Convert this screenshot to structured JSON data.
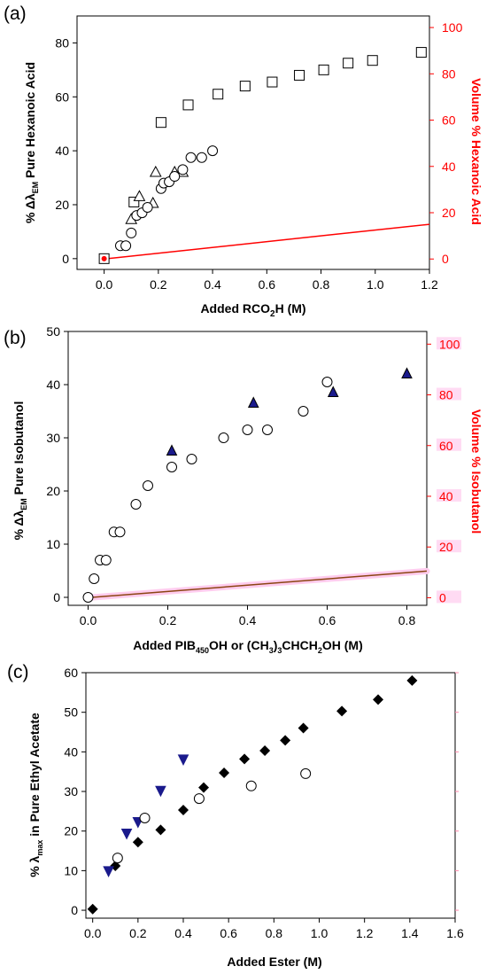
{
  "colors": {
    "axis": "#000000",
    "right_axis_red": "#ff0000",
    "marker_blue": "#1a1a8c",
    "line_red": "#ff0000",
    "line_brown": "#8b4513",
    "line_magenta_glow": "#ffccee"
  },
  "chart_data": [
    {
      "panel_label": "(a)",
      "type": "scatter",
      "xlabel_main": "Added RCO",
      "xlabel_sub": "2",
      "xlabel_tail": "H (M)",
      "ylabel_left": "% Δλ",
      "ylabel_left_sub": "EM",
      "ylabel_left_tail": " Pure Hexanoic Acid",
      "ylabel_right": "Volume % Hexanoic Acid",
      "xlim": [
        -0.1,
        1.2
      ],
      "ylim_left": [
        -4,
        90
      ],
      "ylim_right": [
        -4.5,
        105
      ],
      "x_ticks": [
        "0.0",
        "0.2",
        "0.4",
        "0.6",
        "0.8",
        "1.0",
        "1.2"
      ],
      "y_left_ticks": [
        "0",
        "20",
        "40",
        "60",
        "80"
      ],
      "y_right_ticks": [
        "0",
        "20",
        "40",
        "60",
        "80",
        "100"
      ],
      "series": [
        {
          "marker": "square",
          "points": [
            [
              0.0,
              0
            ],
            [
              0.11,
              21
            ],
            [
              0.21,
              50.5
            ],
            [
              0.31,
              57
            ],
            [
              0.42,
              61
            ],
            [
              0.52,
              64
            ],
            [
              0.62,
              65.5
            ],
            [
              0.72,
              68
            ],
            [
              0.81,
              70
            ],
            [
              0.9,
              72.5
            ],
            [
              0.99,
              73.5
            ],
            [
              1.17,
              76.5
            ]
          ]
        },
        {
          "marker": "triangle",
          "points": [
            [
              0.1,
              14.5
            ],
            [
              0.13,
              23
            ],
            [
              0.18,
              20.5
            ],
            [
              0.19,
              32
            ],
            [
              0.26,
              32
            ],
            [
              0.29,
              32
            ]
          ]
        },
        {
          "marker": "circle",
          "points": [
            [
              0.06,
              4.8
            ],
            [
              0.08,
              4.8
            ],
            [
              0.1,
              9.5
            ],
            [
              0.12,
              16
            ],
            [
              0.14,
              17
            ],
            [
              0.16,
              19
            ],
            [
              0.21,
              26
            ],
            [
              0.22,
              28
            ],
            [
              0.24,
              28.5
            ],
            [
              0.26,
              30.5
            ],
            [
              0.29,
              33
            ],
            [
              0.32,
              37.5
            ],
            [
              0.36,
              37.5
            ],
            [
              0.4,
              40
            ]
          ]
        },
        {
          "marker": "red-dot",
          "points": [
            [
              0.0,
              0
            ]
          ]
        }
      ],
      "line_right_axis": {
        "points": [
          [
            0.0,
            0
          ],
          [
            1.2,
            15
          ]
        ]
      }
    },
    {
      "panel_label": "(b)",
      "type": "scatter",
      "xlabel_a": "Added PIB",
      "xlabel_a_sub": "450",
      "xlabel_b": "OH or (CH",
      "xlabel_b_sub": "3",
      "xlabel_c": ")",
      "xlabel_c_sub": "3",
      "xlabel_d": "CHCH",
      "xlabel_d_sub": "2",
      "xlabel_e": "OH (M)",
      "ylabel_left": "% Δλ",
      "ylabel_left_sub": "EM",
      "ylabel_left_tail": " Pure Isobutanol",
      "ylabel_right": "Volume % Isobutanol",
      "xlim": [
        -0.05,
        0.85
      ],
      "ylim_left": [
        -1.5,
        50
      ],
      "ylim_right": [
        -3,
        105
      ],
      "x_ticks": [
        "0.0",
        "0.2",
        "0.4",
        "0.6",
        "0.8"
      ],
      "y_left_ticks": [
        "0",
        "10",
        "20",
        "30",
        "40",
        "50"
      ],
      "y_right_ticks": [
        "0",
        "20",
        "40",
        "60",
        "80",
        "100"
      ],
      "series": [
        {
          "marker": "circle",
          "points": [
            [
              0.0,
              0
            ],
            [
              0.015,
              3.5
            ],
            [
              0.03,
              7
            ],
            [
              0.045,
              7
            ],
            [
              0.065,
              12.3
            ],
            [
              0.08,
              12.3
            ],
            [
              0.12,
              17.5
            ],
            [
              0.15,
              21
            ],
            [
              0.21,
              24.5
            ],
            [
              0.26,
              26
            ],
            [
              0.34,
              30
            ],
            [
              0.4,
              31.5
            ],
            [
              0.45,
              31.5
            ],
            [
              0.54,
              35
            ],
            [
              0.6,
              40.5
            ]
          ]
        },
        {
          "marker": "triangle-filled",
          "points": [
            [
              0.21,
              27.5
            ],
            [
              0.415,
              36.5
            ],
            [
              0.615,
              38.5
            ],
            [
              0.8,
              42
            ]
          ]
        }
      ],
      "line_right_axis": {
        "points": [
          [
            0.0,
            0
          ],
          [
            0.85,
            10.5
          ]
        ]
      }
    },
    {
      "panel_label": "(c)",
      "type": "scatter",
      "xlabel": "Added Ester (M)",
      "ylabel_left": "% λ",
      "ylabel_left_sub": "max",
      "ylabel_left_tail": " in Pure Ethyl Acetate",
      "xlim": [
        -0.03,
        1.6
      ],
      "ylim_left": [
        -2,
        60
      ],
      "x_ticks": [
        "0.0",
        "0.2",
        "0.4",
        "0.6",
        "0.8",
        "1.0",
        "1.2",
        "1.4",
        "1.6"
      ],
      "y_left_ticks": [
        "0",
        "10",
        "20",
        "30",
        "40",
        "50",
        "60"
      ],
      "series": [
        {
          "marker": "diamond",
          "points": [
            [
              0.0,
              0.3
            ],
            [
              0.1,
              11.2
            ],
            [
              0.2,
              17.2
            ],
            [
              0.3,
              20.3
            ],
            [
              0.4,
              25.3
            ],
            [
              0.49,
              31
            ],
            [
              0.58,
              34.7
            ],
            [
              0.67,
              38.2
            ],
            [
              0.76,
              40.3
            ],
            [
              0.85,
              42.9
            ],
            [
              0.93,
              46
            ],
            [
              1.1,
              50.3
            ],
            [
              1.26,
              53.2
            ],
            [
              1.41,
              58
            ]
          ]
        },
        {
          "marker": "triangle-down",
          "points": [
            [
              0.07,
              10
            ],
            [
              0.15,
              19.5
            ],
            [
              0.2,
              22.4
            ],
            [
              0.3,
              30.3
            ],
            [
              0.4,
              38.2
            ]
          ]
        },
        {
          "marker": "circle",
          "points": [
            [
              0.11,
              13.2
            ],
            [
              0.23,
              23.3
            ],
            [
              0.47,
              28.2
            ],
            [
              0.7,
              31.4
            ],
            [
              0.94,
              34.5
            ]
          ]
        }
      ]
    }
  ]
}
